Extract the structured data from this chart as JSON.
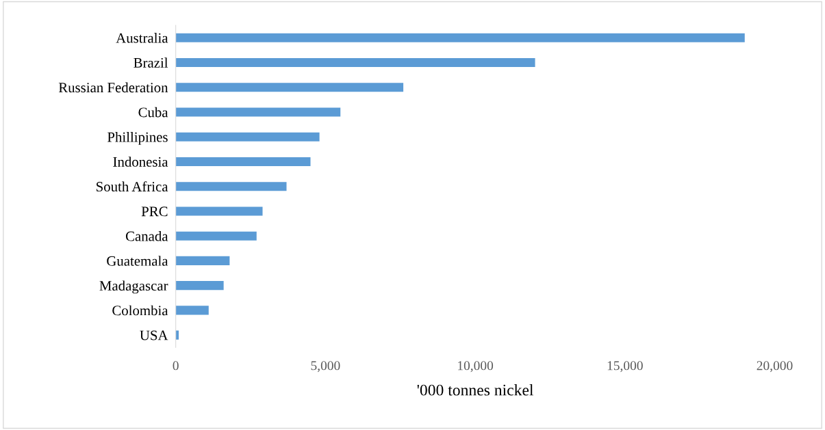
{
  "chart_data": {
    "type": "bar",
    "orientation": "horizontal",
    "xlabel": "'000 tonnes nickel",
    "categories": [
      "Australia",
      "Brazil",
      "Russian Federation",
      "Cuba",
      "Phillipines",
      "Indonesia",
      "South Africa",
      "PRC",
      "Canada",
      "Guatemala",
      "Madagascar",
      "Colombia",
      "USA"
    ],
    "values": [
      19000,
      12000,
      7600,
      5500,
      4800,
      4500,
      3700,
      2900,
      2700,
      1800,
      1600,
      1100,
      100
    ],
    "color": "#5b9bd5",
    "xlim": [
      0,
      20000
    ],
    "xticks": [
      {
        "value": 0,
        "label": "0"
      },
      {
        "value": 5000,
        "label": "5,000"
      },
      {
        "value": 10000,
        "label": "10,000"
      },
      {
        "value": 15000,
        "label": "15,000"
      },
      {
        "value": 20000,
        "label": "20,000"
      }
    ],
    "grid": false
  }
}
